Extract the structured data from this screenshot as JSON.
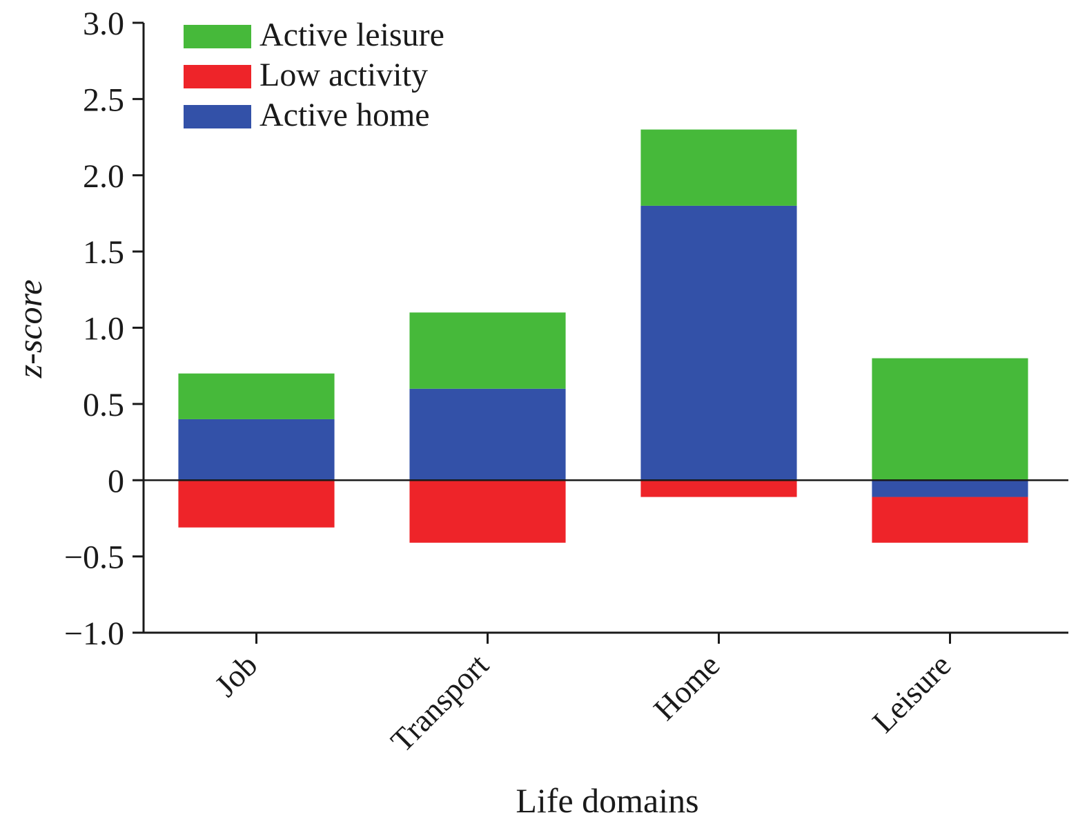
{
  "chart_data": {
    "type": "bar",
    "stacked": true,
    "categories": [
      "Job",
      "Transport",
      "Home",
      "Leisure"
    ],
    "series": [
      {
        "name": "Active leisure",
        "color": "#46b93a",
        "values": [
          0.3,
          0.5,
          0.5,
          0.8
        ]
      },
      {
        "name": "Low activity",
        "color": "#ee2429",
        "values": [
          -0.31,
          -0.41,
          -0.11,
          -0.3
        ]
      },
      {
        "name": "Active home",
        "color": "#3351a8",
        "values": [
          0.4,
          0.6,
          1.8,
          -0.11
        ]
      }
    ],
    "xlabel": "Life domains",
    "ylabel": "z-score",
    "ylim": [
      -1.0,
      3.0
    ],
    "yticks": [
      3.0,
      2.5,
      2.0,
      1.5,
      1.0,
      0.5,
      0,
      -0.5,
      -1.0
    ],
    "ytick_labels": [
      "3.0",
      "2.5",
      "2.0",
      "1.5",
      "1.0",
      "0.5",
      "0",
      "−0.5",
      "−1.0"
    ],
    "legend_position": "top-left",
    "grid": false
  }
}
